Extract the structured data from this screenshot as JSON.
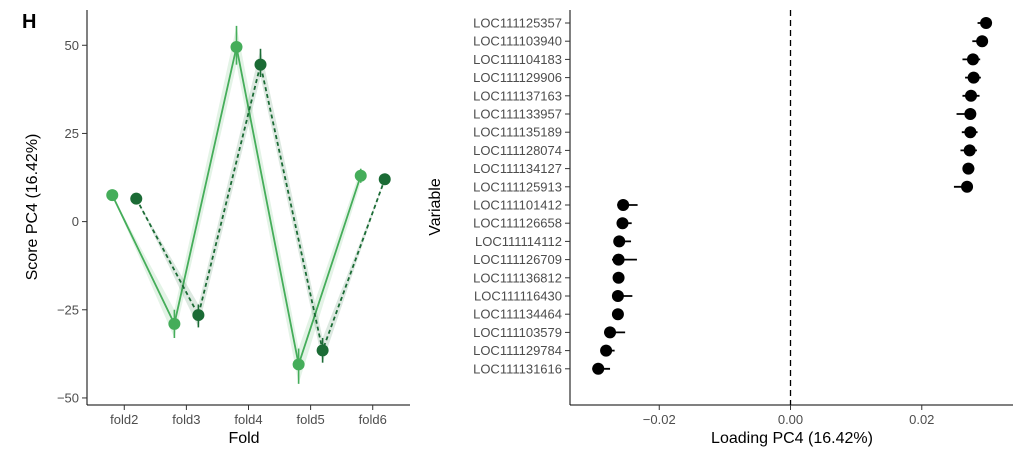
{
  "panel_label": "H",
  "chart_data": [
    {
      "type": "line",
      "xlabel": "Fold",
      "ylabel": "Score PC4 (16.42%)",
      "categories": [
        "fold2",
        "fold3",
        "fold4",
        "fold5",
        "fold6"
      ],
      "ylim": [
        -52,
        60
      ],
      "yticks": [
        -50,
        -25,
        0,
        25,
        50
      ],
      "grid": false,
      "legend": "none",
      "series": [
        {
          "color": "#45ad5a",
          "line_style": "solid",
          "values": [
            7.5,
            -29,
            49.5,
            -40.5,
            13
          ],
          "error_low": [
            7.5,
            -33,
            44.5,
            -46,
            11
          ],
          "error_high": [
            7.5,
            -25,
            55.5,
            -36,
            15
          ]
        },
        {
          "color": "#1b6b35",
          "line_style": "dashed",
          "values": [
            6.5,
            -26.5,
            44.5,
            -36.5,
            12
          ],
          "error_low": [
            6.5,
            -30,
            41,
            -40,
            12
          ],
          "error_high": [
            6.5,
            -23.5,
            49,
            -33,
            12
          ]
        }
      ]
    },
    {
      "type": "scatter",
      "xlabel": "Loading PC4 (16.42%)",
      "ylabel": "Variable",
      "xlim": [
        -0.0336,
        0.0339
      ],
      "xticks": [
        -0.02,
        0.0,
        0.02
      ],
      "xtick_labels": [
        "−0.02",
        "0.00",
        "0.02"
      ],
      "reference_line": 0,
      "grid": false,
      "legend": "none",
      "point_color": "#000000",
      "categories": [
        "LOC111125357",
        "LOC111103940",
        "LOC111104183",
        "LOC111129906",
        "LOC111137163",
        "LOC111133957",
        "LOC111135189",
        "LOC111128074",
        "LOC111134127",
        "LOC111125913",
        "LOC111101412",
        "LOC111126658",
        "LOC111114112",
        "LOC111126709",
        "LOC111136812",
        "LOC111116430",
        "LOC111134464",
        "LOC111103579",
        "LOC111129784",
        "LOC111131616"
      ],
      "values": [
        0.0298,
        0.0292,
        0.0278,
        0.0279,
        0.0275,
        0.0274,
        0.0274,
        0.0273,
        0.0271,
        0.0269,
        -0.0255,
        -0.0256,
        -0.0261,
        -0.0262,
        -0.0262,
        -0.0263,
        -0.0263,
        -0.0275,
        -0.0281,
        -0.0293
      ],
      "error_low": [
        0.0285,
        0.0277,
        0.0262,
        0.0266,
        0.0262,
        0.0253,
        0.0261,
        0.0259,
        0.0263,
        0.0249,
        -0.0264,
        -0.0265,
        -0.0268,
        -0.0272,
        -0.0267,
        -0.0272,
        -0.0267,
        -0.0284,
        -0.0289,
        -0.0302
      ],
      "error_high": [
        0.0305,
        0.03,
        0.0289,
        0.029,
        0.0288,
        0.0281,
        0.0285,
        0.0284,
        0.028,
        0.0277,
        -0.0233,
        -0.0242,
        -0.0243,
        -0.0234,
        -0.0254,
        -0.0241,
        -0.0259,
        -0.0252,
        -0.0268,
        -0.0275
      ]
    }
  ]
}
